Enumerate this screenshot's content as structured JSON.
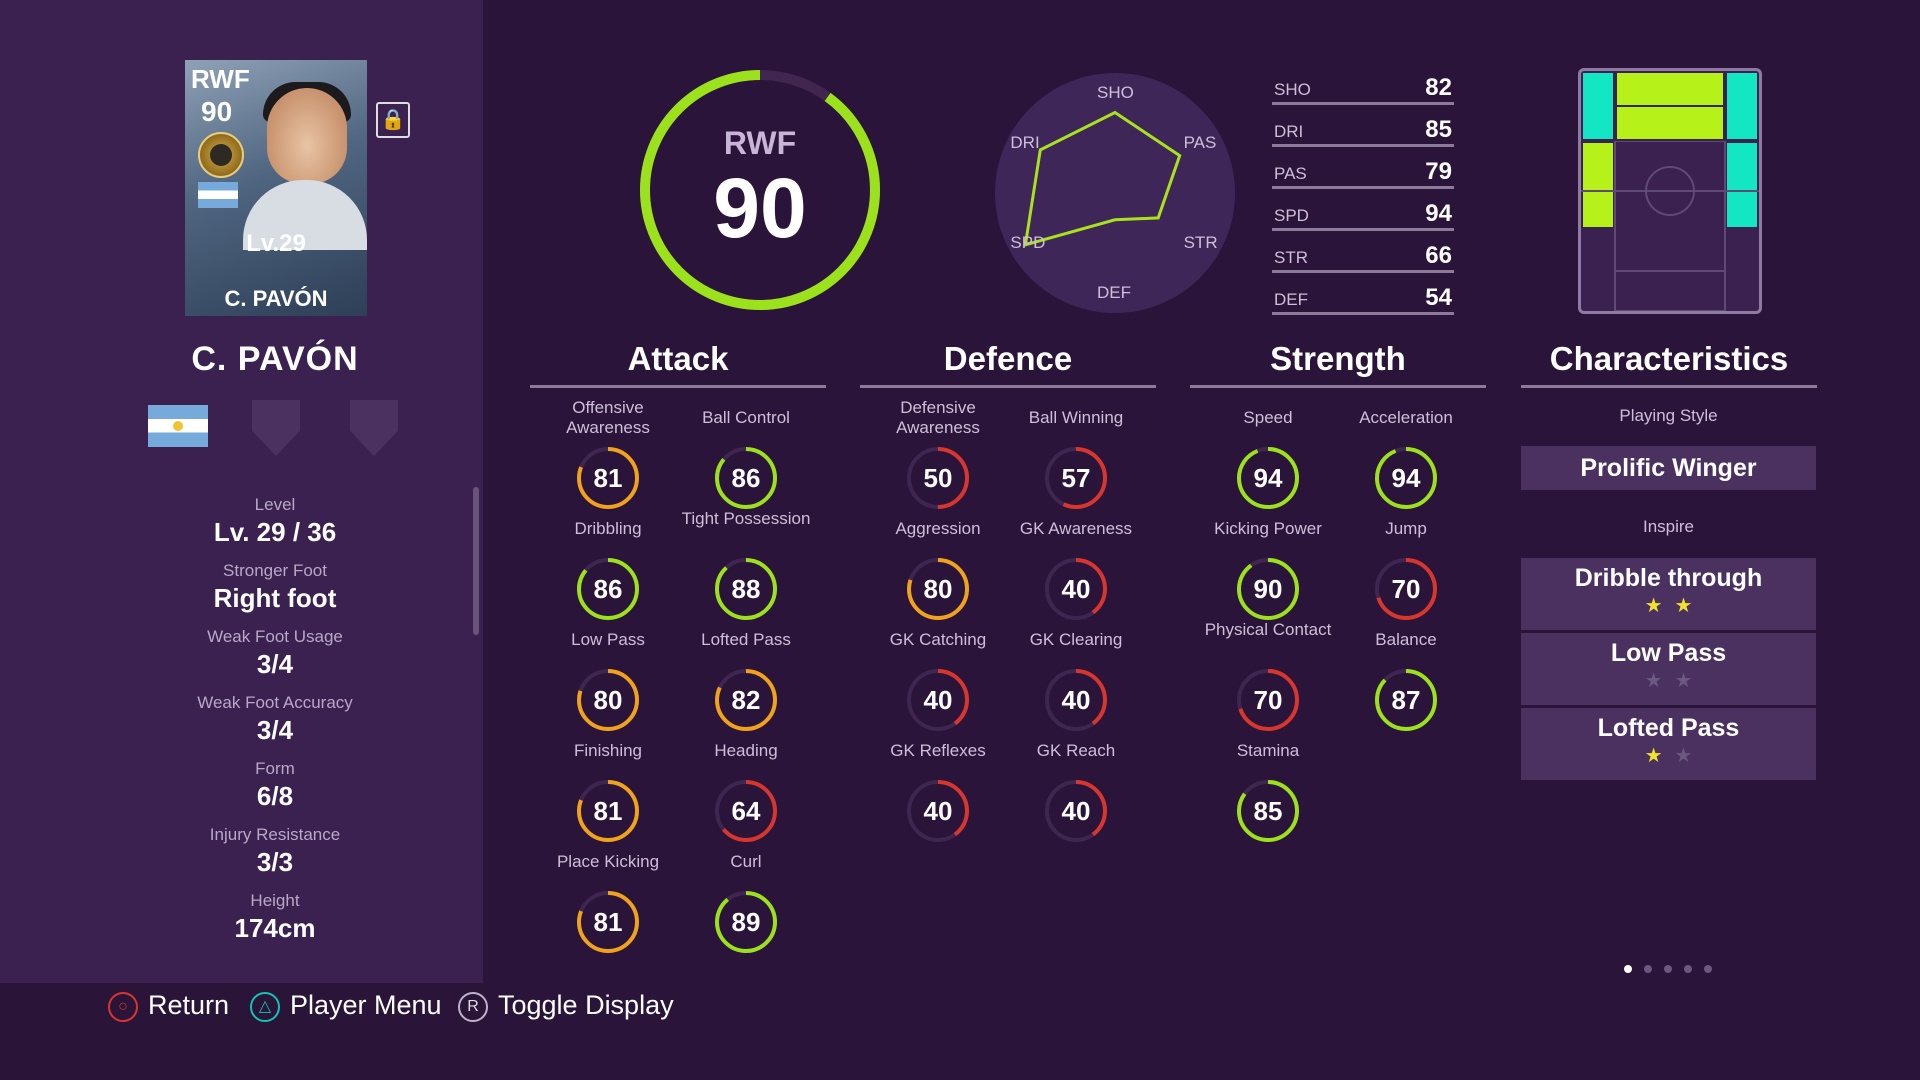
{
  "player": {
    "position": "RWF",
    "overall": "90",
    "level_short": "Lv.29",
    "card_name": "C. PAVÓN",
    "name": "C. PAVÓN"
  },
  "info": [
    {
      "label": "Level",
      "value": "Lv. 29 / 36"
    },
    {
      "label": "Stronger Foot",
      "value": "Right foot"
    },
    {
      "label": "Weak Foot Usage",
      "value": "3/4"
    },
    {
      "label": "Weak Foot Accuracy",
      "value": "3/4"
    },
    {
      "label": "Form",
      "value": "6/8"
    },
    {
      "label": "Injury Resistance",
      "value": "3/3"
    },
    {
      "label": "Height",
      "value": "174cm"
    }
  ],
  "gauge": {
    "position": "RWF",
    "value": "90",
    "fraction": 0.9,
    "color": "#9be21d"
  },
  "radar": {
    "labels": [
      "SHO",
      "PAS",
      "STR",
      "DEF",
      "SPD",
      "DRI"
    ],
    "values": {
      "SHO": 82,
      "PAS": 79,
      "STR": 66,
      "DEF": 54,
      "SPD": 94,
      "DRI": 85
    }
  },
  "stats": [
    {
      "name": "SHO",
      "value": "82"
    },
    {
      "name": "DRI",
      "value": "85"
    },
    {
      "name": "PAS",
      "value": "79"
    },
    {
      "name": "SPD",
      "value": "94"
    },
    {
      "name": "STR",
      "value": "66"
    },
    {
      "name": "DEF",
      "value": "54"
    }
  ],
  "sections": {
    "attack": "Attack",
    "defence": "Defence",
    "strength": "Strength",
    "characteristics": "Characteristics"
  },
  "attack": [
    {
      "label": "Offensive Awareness",
      "value": 81
    },
    {
      "label": "Ball Control",
      "value": 86
    },
    {
      "label": "Dribbling",
      "value": 86
    },
    {
      "label": "Tight Possession",
      "value": 88
    },
    {
      "label": "Low Pass",
      "value": 80
    },
    {
      "label": "Lofted Pass",
      "value": 82
    },
    {
      "label": "Finishing",
      "value": 81
    },
    {
      "label": "Heading",
      "value": 64
    },
    {
      "label": "Place Kicking",
      "value": 81
    },
    {
      "label": "Curl",
      "value": 89
    }
  ],
  "defence": [
    {
      "label": "Defensive Awareness",
      "value": 50
    },
    {
      "label": "Ball Winning",
      "value": 57
    },
    {
      "label": "Aggression",
      "value": 80
    },
    {
      "label": "GK Awareness",
      "value": 40
    },
    {
      "label": "GK Catching",
      "value": 40
    },
    {
      "label": "GK Clearing",
      "value": 40
    },
    {
      "label": "GK Reflexes",
      "value": 40
    },
    {
      "label": "GK Reach",
      "value": 40
    }
  ],
  "strength": [
    {
      "label": "Speed",
      "value": 94
    },
    {
      "label": "Acceleration",
      "value": 94
    },
    {
      "label": "Kicking Power",
      "value": 90
    },
    {
      "label": "Jump",
      "value": 70
    },
    {
      "label": "Physical Contact",
      "value": 70
    },
    {
      "label": "Balance",
      "value": 87
    },
    {
      "label": "Stamina",
      "value": 85
    }
  ],
  "characteristics": {
    "playing_style_label": "Playing Style",
    "playing_style": "Prolific Winger",
    "inspire_label": "Inspire",
    "inspire": [
      {
        "name": "Dribble through",
        "stars": 2
      },
      {
        "name": "Low Pass",
        "stars": 0
      },
      {
        "name": "Lofted Pass",
        "stars": 1
      }
    ]
  },
  "colors": {
    "green": "#9be21d",
    "orange": "#f0a21a",
    "red": "#d8362c",
    "cyan": "#12e6c3",
    "lime": "#b6f21a"
  },
  "pages": {
    "total": 5,
    "active": 0
  },
  "footer": [
    {
      "icon": "circle-button-icon",
      "label": "Return"
    },
    {
      "icon": "triangle-button-icon",
      "label": "Player Menu"
    },
    {
      "icon": "r-button-icon",
      "label": "Toggle Display"
    }
  ]
}
